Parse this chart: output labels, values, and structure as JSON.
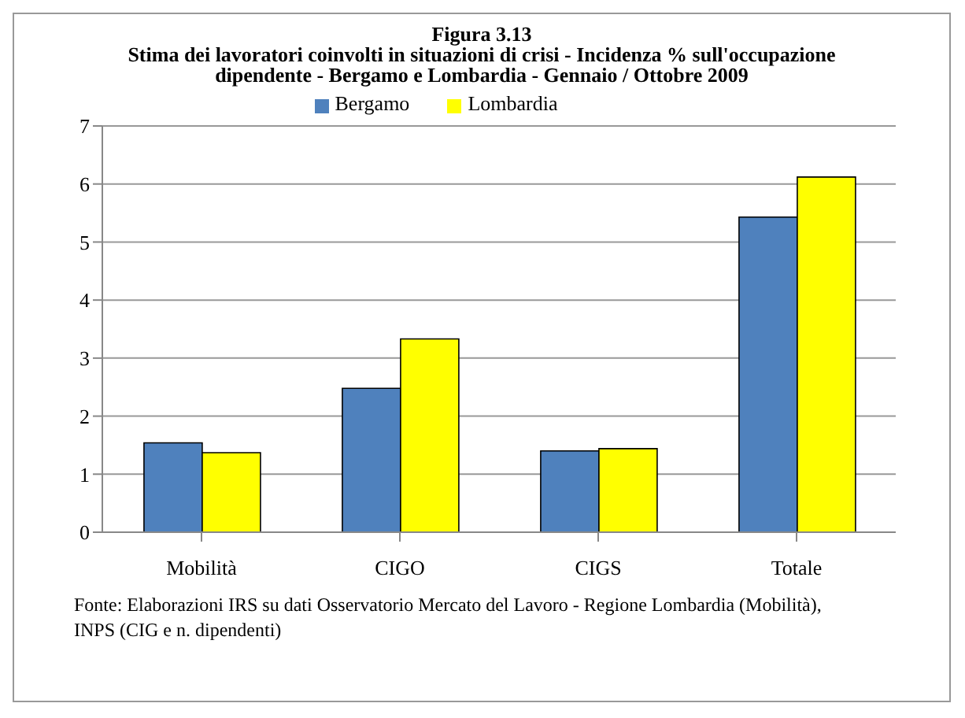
{
  "chart_data": {
    "type": "bar",
    "title": "Figura 3.13",
    "subtitle": "Stima dei lavoratori coinvolti in situazioni di crisi  - Incidenza % sull'occupazione dipendente - Bergamo e Lombardia - Gennaio / Ottobre 2009",
    "categories": [
      "Mobilità",
      "CIGO",
      "CIGS",
      "Totale"
    ],
    "series": [
      {
        "name": "Bergamo",
        "color": "#4f81bd",
        "values": [
          1.54,
          2.48,
          1.4,
          5.43
        ]
      },
      {
        "name": "Lombardia",
        "color": "#ffff00",
        "values": [
          1.37,
          3.33,
          1.44,
          6.12
        ]
      }
    ],
    "ylim": [
      0,
      7
    ],
    "yticks": [
      0,
      1,
      2,
      3,
      4,
      5,
      6,
      7
    ],
    "grid": "y",
    "legend": "top",
    "annotations": [
      "Fonte: Elaborazioni IRS su dati Osservatorio Mercato del Lavoro - Regione  Lombardia (Mobilità), INPS (CIG e n. dipendenti)"
    ]
  }
}
